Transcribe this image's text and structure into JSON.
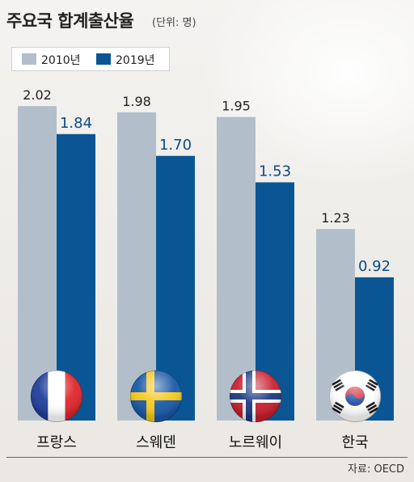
{
  "title": "주요국 합계출산율",
  "unit": "(단위: 명)",
  "source": "자료: OECD",
  "colors": {
    "series_2010": "#b2bfca",
    "series_2019": "#0a5694"
  },
  "flags": [
    "france-flag-icon",
    "sweden-flag-icon",
    "norway-flag-icon",
    "korea-flag-icon"
  ],
  "chart_data": {
    "type": "bar",
    "title": "주요국 합계출산율",
    "categories": [
      "프랑스",
      "스웨덴",
      "노르웨이",
      "한국"
    ],
    "series": [
      {
        "name": "2010년",
        "values": [
          2.02,
          1.98,
          1.95,
          1.23
        ],
        "labels": [
          "2.02",
          "1.98",
          "1.95",
          "1.23"
        ]
      },
      {
        "name": "2019년",
        "values": [
          1.84,
          1.7,
          1.53,
          0.92
        ],
        "labels": [
          "1.84",
          "1.70",
          "1.53",
          "0.92"
        ]
      }
    ],
    "legend": "top-left",
    "grid": false
  }
}
